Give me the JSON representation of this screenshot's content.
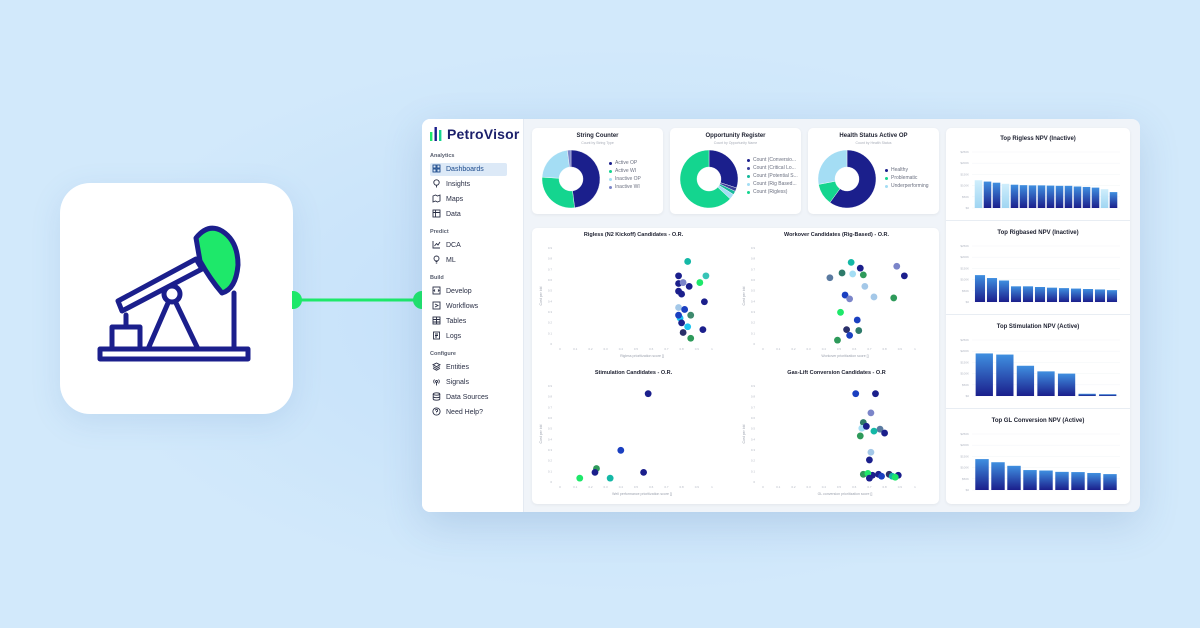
{
  "colors": {
    "background": "#d2e9fb",
    "navy": "#1b1f8c",
    "green": "#1ee86a",
    "teal": "#14cfa0",
    "lightblue": "#a4ddf4",
    "brandDark": "#1b1f6b"
  },
  "hero_icon": "pumpjack-icon",
  "brand": {
    "name": "PetroVisor"
  },
  "sidebar": {
    "sections": [
      {
        "title": "Analytics",
        "items": [
          {
            "label": "Dashboards",
            "icon": "dashboard-icon",
            "active": true
          },
          {
            "label": "Insights",
            "icon": "lightbulb-pin-icon"
          },
          {
            "label": "Maps",
            "icon": "map-icon"
          },
          {
            "label": "Data",
            "icon": "table-icon"
          }
        ]
      },
      {
        "title": "Predict",
        "items": [
          {
            "label": "DCA",
            "icon": "chart-icon"
          },
          {
            "label": "ML",
            "icon": "bulb-icon"
          }
        ]
      },
      {
        "title": "Build",
        "items": [
          {
            "label": "Develop",
            "icon": "code-icon"
          },
          {
            "label": "Workflows",
            "icon": "workflow-icon"
          },
          {
            "label": "Tables",
            "icon": "grid-icon"
          },
          {
            "label": "Logs",
            "icon": "log-icon"
          }
        ]
      },
      {
        "title": "Configure",
        "items": [
          {
            "label": "Entities",
            "icon": "layers-icon"
          },
          {
            "label": "Signals",
            "icon": "signal-icon"
          },
          {
            "label": "Data Sources",
            "icon": "database-icon"
          },
          {
            "label": "Need Help?",
            "icon": "help-icon"
          }
        ]
      }
    ]
  },
  "donuts": [
    {
      "title": "String Counter",
      "subtitle": "Count by String Type",
      "legend": [
        "Active OP",
        "Active WI",
        "Inactive OP",
        "Inactive WI"
      ],
      "values": [
        48,
        28,
        22,
        2
      ],
      "colors": [
        "#1b1f8c",
        "#14d58f",
        "#a4ddf4",
        "#7b85c9"
      ]
    },
    {
      "title": "Opportunity Register",
      "subtitle": "Count by Opportunity Name",
      "legend": [
        "Count (Conversio...",
        "Count (Critical Lo...",
        "Count (Potential S...",
        "Count (Rig Based...",
        "Count (Rigless)"
      ],
      "values": [
        30,
        2,
        2,
        3,
        63
      ],
      "colors": [
        "#1b1f8c",
        "#3a3f9a",
        "#14b89a",
        "#a4ddf4",
        "#14d58f"
      ]
    },
    {
      "title": "Health Status Active OP",
      "subtitle": "Count by Health Status",
      "legend": [
        "Healthy",
        "Problematic",
        "Underperforming"
      ],
      "values": [
        60,
        12,
        28
      ],
      "colors": [
        "#1b1f8c",
        "#14d58f",
        "#a4ddf4"
      ]
    }
  ],
  "scatters": [
    {
      "title": "Rigless (N2 Kickoff) Candidates - O.R.",
      "xlabel": "Rigless prioritization score []",
      "ylabel": "Cost per bbl",
      "xticks": [
        "0",
        "0.1",
        "0.2",
        "0.3",
        "0.4",
        "0.5",
        "0.6",
        "0.7",
        "0.8",
        "0.9",
        "1"
      ],
      "yticks": [
        "0.9",
        "0.8",
        "0.7",
        "0.6",
        "0.5",
        "0.4",
        "0.3",
        "0.2",
        "0.1",
        "0"
      ],
      "points": [
        [
          0.84,
          0.86,
          "#14b8a6"
        ],
        [
          0.78,
          0.71,
          "#1b1f8c"
        ],
        [
          0.78,
          0.63,
          "#1b1f8c"
        ],
        [
          0.81,
          0.64,
          "#7b85c9"
        ],
        [
          0.92,
          0.64,
          "#1ee86a"
        ],
        [
          0.96,
          0.71,
          "#37c4b6"
        ],
        [
          0.78,
          0.55,
          "#1b1f8c"
        ],
        [
          0.95,
          0.44,
          "#1b1f8c"
        ],
        [
          0.8,
          0.52,
          "#1b1f8c"
        ],
        [
          0.85,
          0.6,
          "#1b1f8c"
        ],
        [
          0.78,
          0.38,
          "#a4c8e8"
        ],
        [
          0.82,
          0.36,
          "#1a3fc0"
        ],
        [
          0.86,
          0.3,
          "#3e8a6e"
        ],
        [
          0.79,
          0.27,
          "#1ec4f0"
        ],
        [
          0.8,
          0.22,
          "#1b1f8c"
        ],
        [
          0.94,
          0.15,
          "#1b1f8c"
        ],
        [
          0.81,
          0.12,
          "#2a2f6a"
        ],
        [
          0.86,
          0.06,
          "#2e9a5a"
        ],
        [
          0.78,
          0.3,
          "#1a3fc0"
        ],
        [
          0.84,
          0.18,
          "#1ec4f0"
        ]
      ]
    },
    {
      "title": "Workover Candidates (Rig-Based) - O.R.",
      "xlabel": "Workover prioritization score []",
      "ylabel": "Cost per bbl",
      "xticks": [
        "0",
        "0.1",
        "0.2",
        "0.3",
        "0.4",
        "0.5",
        "0.6",
        "0.7",
        "0.8",
        "0.9",
        "1"
      ],
      "yticks": [
        "0.9",
        "0.8",
        "0.7",
        "0.6",
        "0.5",
        "0.4",
        "0.3",
        "0.2",
        "0.1",
        "0"
      ],
      "points": [
        [
          0.58,
          0.85,
          "#14b8a6"
        ],
        [
          0.64,
          0.79,
          "#1b1f8c"
        ],
        [
          0.52,
          0.74,
          "#2e7a6a"
        ],
        [
          0.59,
          0.73,
          "#a4ddf4"
        ],
        [
          0.66,
          0.72,
          "#2e9a5a"
        ],
        [
          0.44,
          0.69,
          "#5a7aa0"
        ],
        [
          0.88,
          0.81,
          "#7b85c9"
        ],
        [
          0.93,
          0.71,
          "#1b1f8c"
        ],
        [
          0.67,
          0.6,
          "#a4c8e8"
        ],
        [
          0.54,
          0.51,
          "#1a3fc0"
        ],
        [
          0.57,
          0.47,
          "#7b85c9"
        ],
        [
          0.73,
          0.49,
          "#a4c8e8"
        ],
        [
          0.86,
          0.48,
          "#2e9a5a"
        ],
        [
          0.51,
          0.33,
          "#1ee86a"
        ],
        [
          0.62,
          0.25,
          "#1a3fc0"
        ],
        [
          0.63,
          0.14,
          "#2e7a6a"
        ],
        [
          0.55,
          0.15,
          "#2a2f6a"
        ],
        [
          0.57,
          0.09,
          "#1a3fc0"
        ],
        [
          0.49,
          0.04,
          "#2e9a5a"
        ]
      ]
    },
    {
      "title": "Stimulation Candidates - O.R.",
      "xlabel": "Well performance prioritization score []",
      "ylabel": "Cost per bbl",
      "xticks": [
        "0",
        "0.1",
        "0.2",
        "0.3",
        "0.4",
        "0.5",
        "0.6",
        "0.7",
        "0.8",
        "0.9",
        "1"
      ],
      "yticks": [
        "0.9",
        "0.8",
        "0.7",
        "0.6",
        "0.5",
        "0.4",
        "0.3",
        "0.2",
        "0.1",
        "0"
      ],
      "points": [
        [
          0.58,
          0.92,
          "#1b1f8c"
        ],
        [
          0.4,
          0.33,
          "#1a3fc0"
        ],
        [
          0.24,
          0.14,
          "#2e9a5a"
        ],
        [
          0.23,
          0.1,
          "#1b1f8c"
        ],
        [
          0.13,
          0.04,
          "#1ee86a"
        ],
        [
          0.33,
          0.04,
          "#14b8a6"
        ],
        [
          0.55,
          0.1,
          "#1b1f8c"
        ]
      ]
    },
    {
      "title": "Gas-Lift Conversion Candidates - O.R",
      "xlabel": "GL conversion prioritization score []",
      "ylabel": "Cost per bbl",
      "xticks": [
        "0",
        "0.1",
        "0.2",
        "0.3",
        "0.4",
        "0.5",
        "0.6",
        "0.7",
        "0.8",
        "0.9",
        "1"
      ],
      "yticks": [
        "0.9",
        "0.8",
        "0.7",
        "0.6",
        "0.5",
        "0.4",
        "0.3",
        "0.2",
        "0.1",
        "0"
      ],
      "points": [
        [
          0.61,
          0.92,
          "#1a3fc0"
        ],
        [
          0.74,
          0.92,
          "#1b1f8c"
        ],
        [
          0.71,
          0.72,
          "#7b85c9"
        ],
        [
          0.66,
          0.62,
          "#2e7a6a"
        ],
        [
          0.65,
          0.56,
          "#a4ddf4"
        ],
        [
          0.68,
          0.58,
          "#1b1f8c"
        ],
        [
          0.77,
          0.55,
          "#5a7aa0"
        ],
        [
          0.8,
          0.51,
          "#1b1f8c"
        ],
        [
          0.64,
          0.48,
          "#2e9a5a"
        ],
        [
          0.73,
          0.53,
          "#14b8a6"
        ],
        [
          0.71,
          0.31,
          "#a4c8e8"
        ],
        [
          0.7,
          0.23,
          "#1b1f8c"
        ],
        [
          0.72,
          0.07,
          "#1b1f8c"
        ],
        [
          0.76,
          0.08,
          "#1b1f8c"
        ],
        [
          0.66,
          0.08,
          "#2e9a5a"
        ],
        [
          0.69,
          0.09,
          "#1ee86a"
        ],
        [
          0.78,
          0.06,
          "#1a3fc0"
        ],
        [
          0.83,
          0.08,
          "#2a2f6a"
        ],
        [
          0.85,
          0.06,
          "#14b8a6"
        ],
        [
          0.89,
          0.07,
          "#1b1f8c"
        ],
        [
          0.7,
          0.04,
          "#1b1f8c"
        ],
        [
          0.87,
          0.05,
          "#1ee86a"
        ]
      ]
    }
  ],
  "bar_charts": [
    {
      "title": "Top Rigless NPV (Inactive)",
      "yticks": [
        "$250K",
        "$200K",
        "$150K",
        "$100K",
        "$50K",
        "$0"
      ],
      "ymax": 250,
      "values": [
        124,
        118,
        113,
        108,
        104,
        102,
        101,
        101,
        100,
        99,
        99,
        96,
        94,
        91,
        84,
        71
      ]
    },
    {
      "title": "Top Rigbased NPV (Inactive)",
      "yticks": [
        "$250K",
        "$200K",
        "$150K",
        "$100K",
        "$50K",
        "$0"
      ],
      "ymax": 250,
      "values": [
        120,
        107,
        96,
        70,
        70,
        67,
        64,
        62,
        60,
        58,
        56,
        53
      ]
    },
    {
      "title": "Top Stimulation NPV (Active)",
      "yticks": [
        "$250K",
        "$200K",
        "$150K",
        "$100K",
        "$50K",
        "$0"
      ],
      "ymax": 250,
      "values": [
        190,
        185,
        135,
        110,
        100,
        10,
        8
      ]
    },
    {
      "title": "Top GL Conversion NPV (Active)",
      "yticks": [
        "$250K",
        "$200K",
        "$150K",
        "$100K",
        "$50K",
        "$0"
      ],
      "ymax": 250,
      "values": [
        138,
        124,
        108,
        89,
        87,
        81,
        80,
        76,
        71
      ]
    }
  ]
}
